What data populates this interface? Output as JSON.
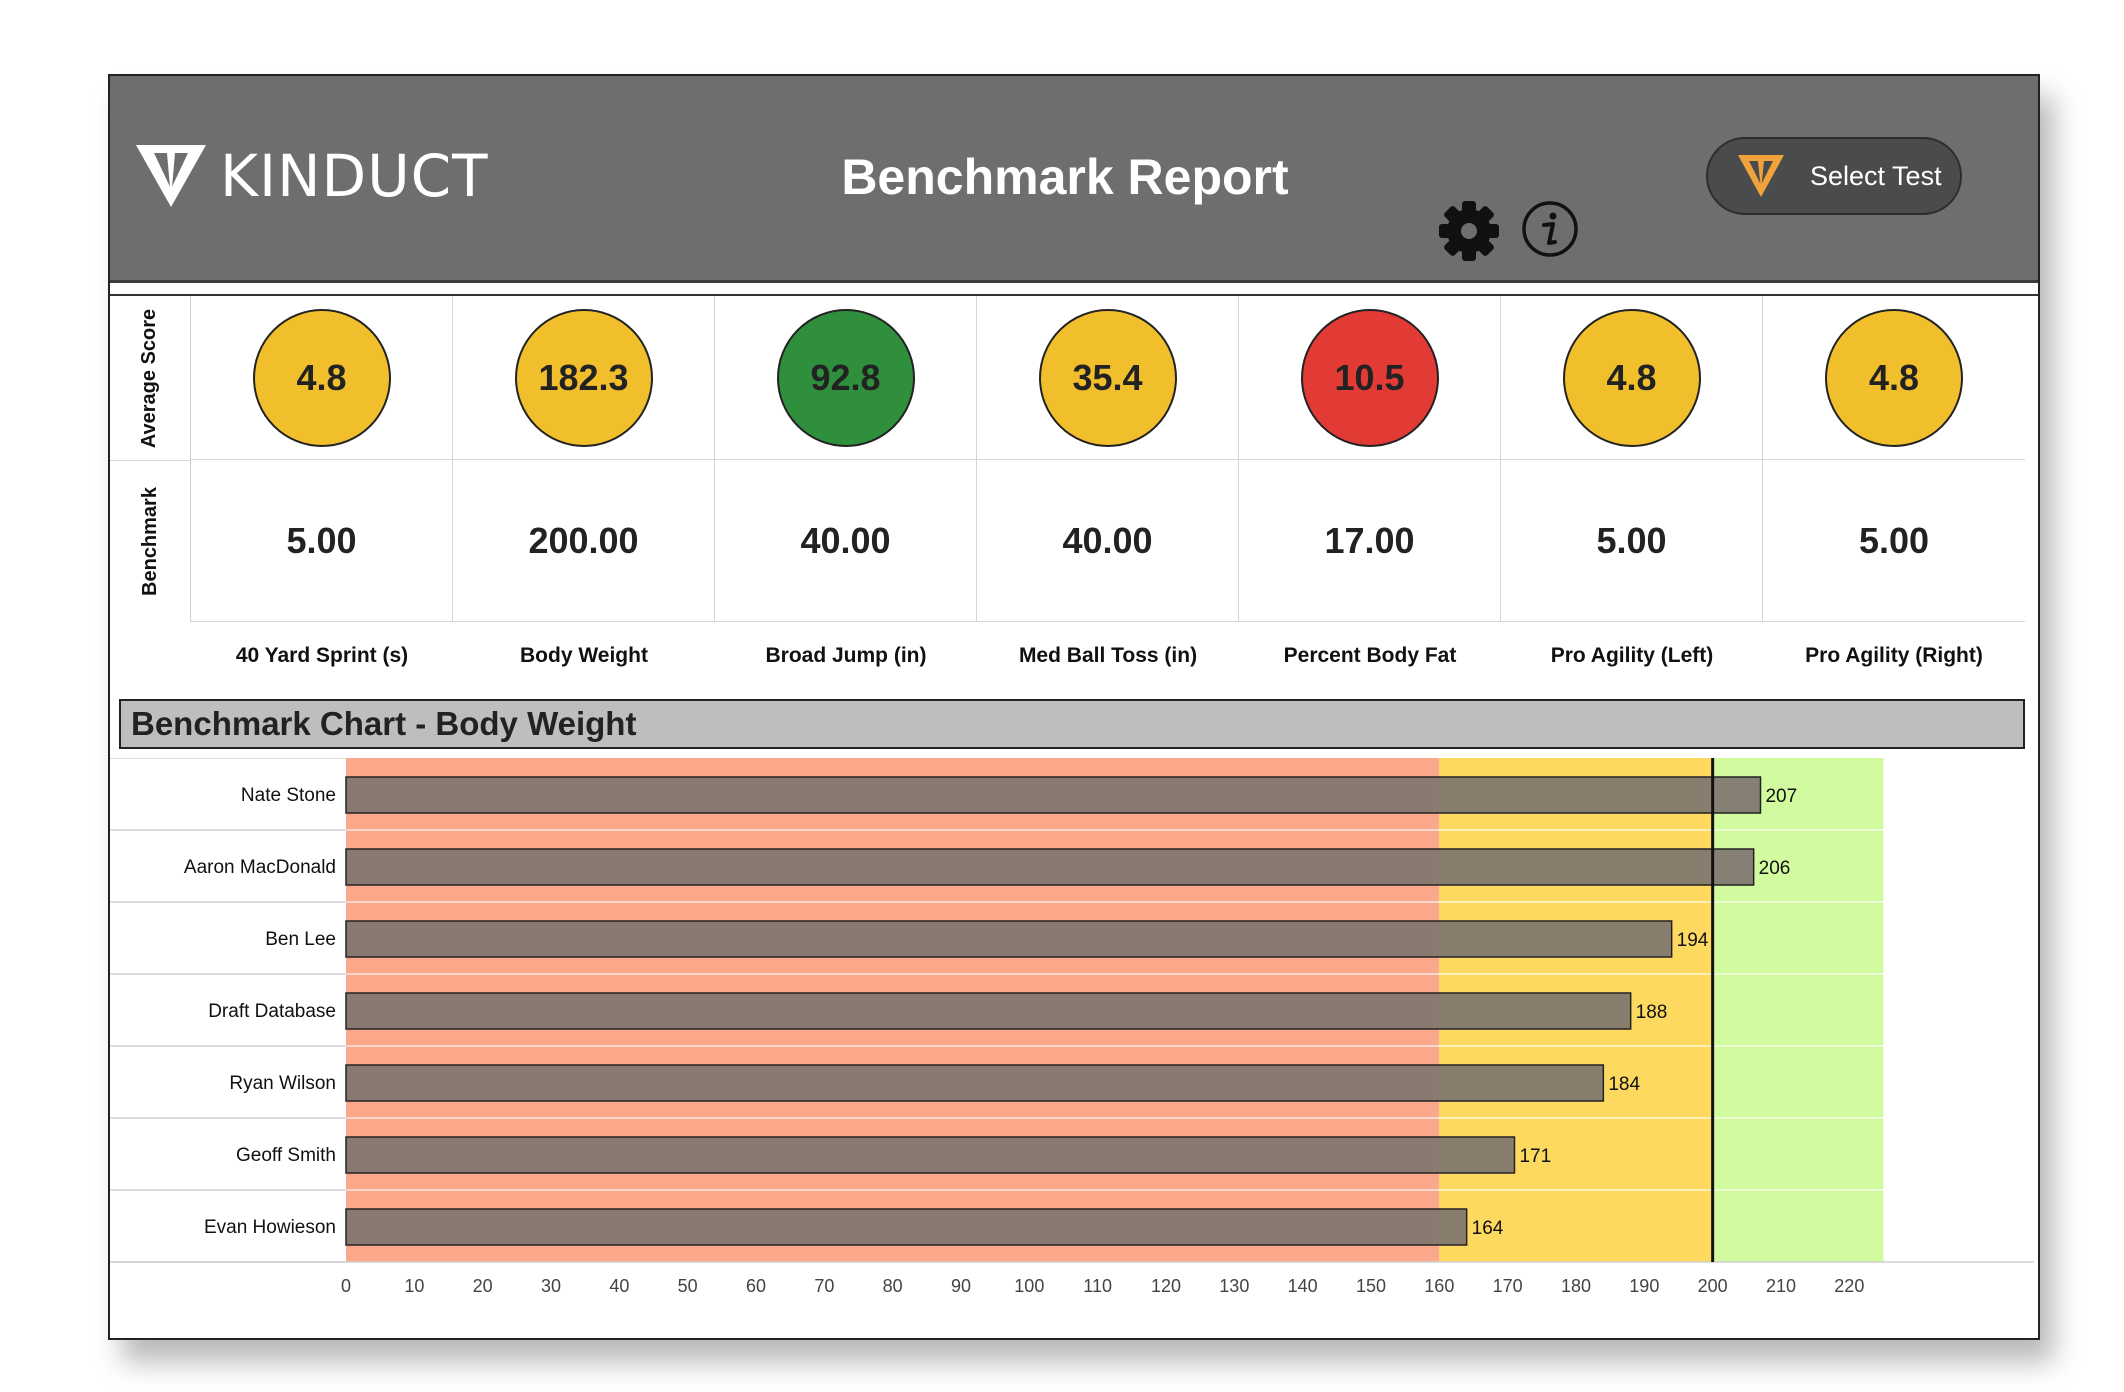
{
  "header": {
    "logo_text": "KINDUCT",
    "title": "Benchmark Report",
    "select_test_label": "Select Test",
    "icons": [
      "kinduct-logo-icon",
      "gear-icon",
      "info-icon",
      "kinduct-orange-icon"
    ]
  },
  "scores": {
    "row_labels": {
      "average": "Average Score",
      "benchmark": "Benchmark"
    },
    "tests": [
      {
        "name": "40 Yard Sprint (s)",
        "average": "4.8",
        "benchmark": "5.00",
        "status_color": "#f1bf2c"
      },
      {
        "name": "Body Weight",
        "average": "182.3",
        "benchmark": "200.00",
        "status_color": "#f1bf2c"
      },
      {
        "name": "Broad Jump (in)",
        "average": "92.8",
        "benchmark": "40.00",
        "status_color": "#2f8f3d"
      },
      {
        "name": "Med Ball Toss (in)",
        "average": "35.4",
        "benchmark": "40.00",
        "status_color": "#f1bf2c"
      },
      {
        "name": "Percent Body Fat",
        "average": "10.5",
        "benchmark": "17.00",
        "status_color": "#e23a35"
      },
      {
        "name": "Pro Agility (Left)",
        "average": "4.8",
        "benchmark": "5.00",
        "status_color": "#f1bf2c"
      },
      {
        "name": "Pro Agility (Right)",
        "average": "4.8",
        "benchmark": "5.00",
        "status_color": "#f1bf2c"
      }
    ]
  },
  "chart_title": "Benchmark Chart - Body Weight",
  "chart_data": {
    "type": "bar",
    "orientation": "horizontal",
    "categories": [
      "Nate Stone",
      "Aaron MacDonald",
      "Ben Lee",
      "Draft Database",
      "Ryan Wilson",
      "Geoff Smith",
      "Evan Howieson"
    ],
    "values": [
      207,
      206,
      194,
      188,
      184,
      171,
      164
    ],
    "xlim": [
      0,
      220
    ],
    "x_ticks": [
      0,
      10,
      20,
      30,
      40,
      50,
      60,
      70,
      80,
      90,
      100,
      110,
      120,
      130,
      140,
      150,
      160,
      170,
      180,
      190,
      200,
      210,
      220
    ],
    "benchmark_line": 200,
    "zones": [
      {
        "from": 0,
        "to": 160,
        "color": "#fba98a"
      },
      {
        "from": 160,
        "to": 200,
        "color": "#fdd95f"
      },
      {
        "from": 200,
        "to": 225,
        "color": "#d2fb9f"
      }
    ],
    "bar_color": "#7f7570",
    "data_labels": true
  }
}
